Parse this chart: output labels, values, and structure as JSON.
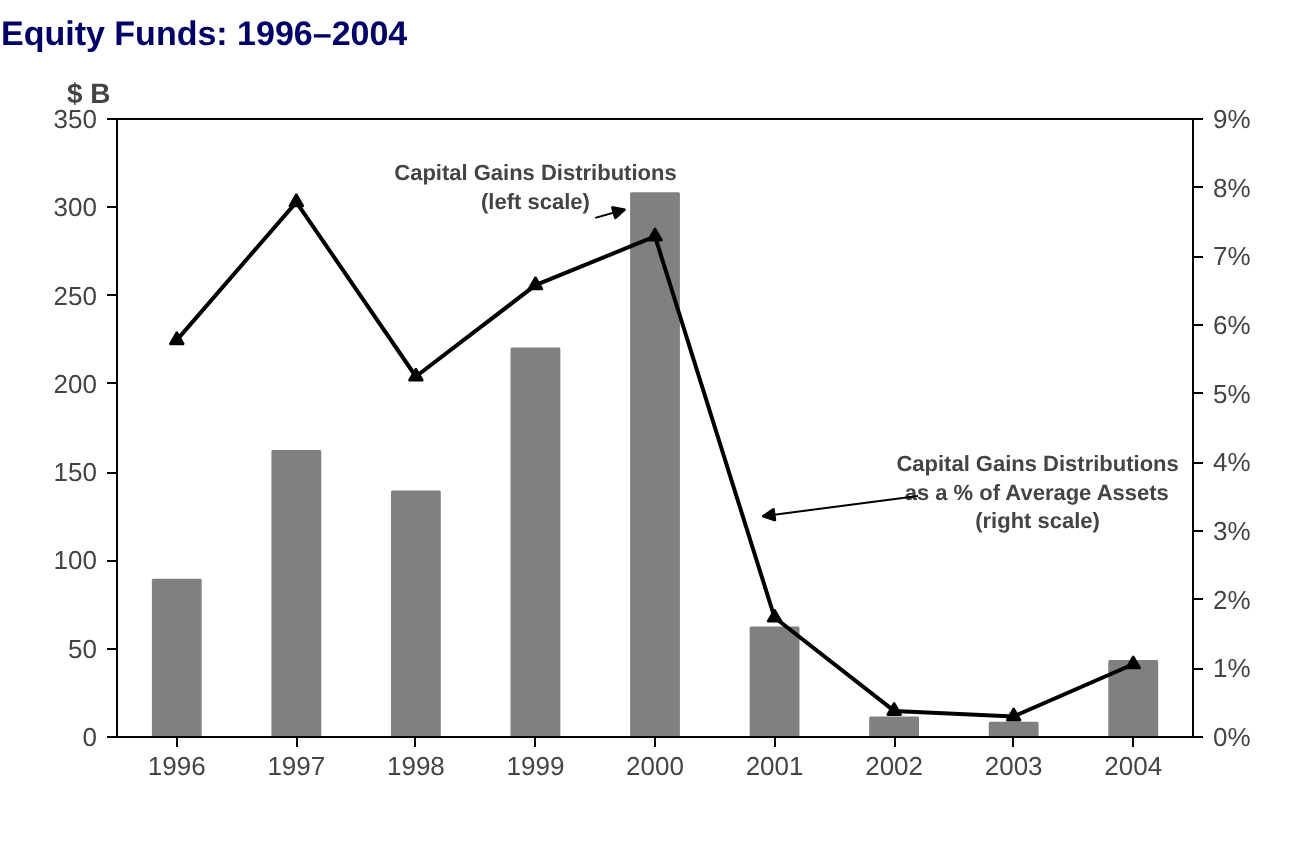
{
  "chart_data": {
    "type": "bar",
    "title": "Equity Funds: 1996–2004",
    "ylabel": "$ B",
    "categories": [
      "1996",
      "1997",
      "1998",
      "1999",
      "2000",
      "2001",
      "2002",
      "2003",
      "2004"
    ],
    "series": [
      {
        "name": "Capital Gains Distributions\n(left scale)",
        "color": "#808080",
        "values": [
          89,
          162,
          139,
          220,
          308,
          62,
          11,
          8,
          43
        ]
      },
      {
        "name": "Capital Gains Distributions\nas a % of Average Assets\n(right scale)",
        "type": "line",
        "axis": "y2",
        "color": "#000000",
        "marker": "triangle",
        "values": [
          5.78,
          7.79,
          5.25,
          6.58,
          7.29,
          1.74,
          0.38,
          0.3,
          1.06
        ]
      }
    ],
    "ylim": [
      0,
      350
    ],
    "yticks": [
      0,
      50,
      100,
      150,
      200,
      250,
      300,
      350
    ],
    "y2lim": [
      0,
      9
    ],
    "y2ticks": [
      {
        "value": 0,
        "label": "0%"
      },
      {
        "value": 1,
        "label": "1%"
      },
      {
        "value": 2,
        "label": "2%"
      },
      {
        "value": 3,
        "label": "3%"
      },
      {
        "value": 4,
        "label": "4%"
      },
      {
        "value": 5,
        "label": "5%"
      },
      {
        "value": 6,
        "label": "6%"
      },
      {
        "value": 7,
        "label": "7%"
      },
      {
        "value": 8,
        "label": "8%"
      },
      {
        "value": 9,
        "label": "9%"
      }
    ],
    "grid": false
  }
}
